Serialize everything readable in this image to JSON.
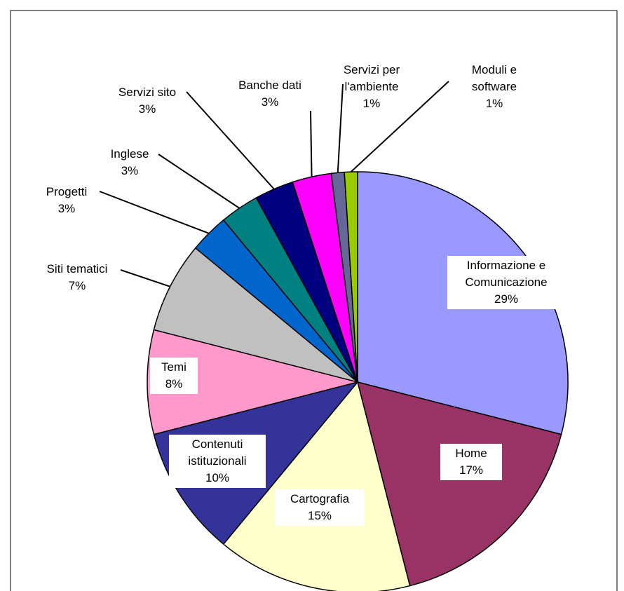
{
  "chart_data": {
    "type": "pie",
    "categories": [
      "Informazione e Comunicazione",
      "Home",
      "Cartografia",
      "Contenuti istituzionali",
      "Temi",
      "Siti tematici",
      "Progetti",
      "Inglese",
      "Servizi sito",
      "Banche dati",
      "Servizi per l'ambiente",
      "Moduli e software"
    ],
    "values": [
      29,
      17,
      15,
      10,
      8,
      7,
      3,
      3,
      3,
      3,
      1,
      1
    ],
    "value_labels": [
      "29%",
      "17%",
      "15%",
      "10%",
      "8%",
      "7%",
      "3%",
      "3%",
      "3%",
      "3%",
      "1%",
      "1%"
    ],
    "colors": [
      "#9999ff",
      "#993366",
      "#ffffcc",
      "#333399",
      "#ff99cc",
      "#c0c0c0",
      "#0066cc",
      "#008080",
      "#000080",
      "#ff00ff",
      "#666699",
      "#99cc00"
    ]
  }
}
